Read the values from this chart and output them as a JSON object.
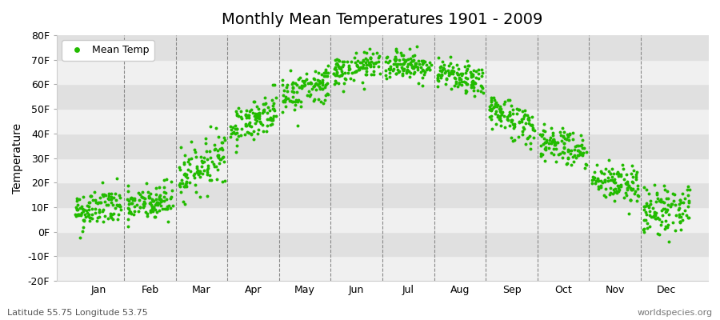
{
  "title": "Monthly Mean Temperatures 1901 - 2009",
  "ylabel": "Temperature",
  "xlabel_bottom_left": "Latitude 55.75 Longitude 53.75",
  "xlabel_bottom_right": "worldspecies.org",
  "legend_label": "Mean Temp",
  "dot_color": "#22bb00",
  "background_color": "#ffffff",
  "band_colors": [
    "#f0f0f0",
    "#e0e0e0"
  ],
  "ylim": [
    -20,
    80
  ],
  "yticks": [
    -20,
    -10,
    0,
    10,
    20,
    30,
    40,
    50,
    60,
    70,
    80
  ],
  "ytick_labels": [
    "-20F",
    "-10F",
    "0F",
    "10F",
    "20F",
    "30F",
    "40F",
    "50F",
    "60F",
    "70F",
    "80F"
  ],
  "months": [
    "Jan",
    "Feb",
    "Mar",
    "Apr",
    "May",
    "Jun",
    "Jul",
    "Aug",
    "Sep",
    "Oct",
    "Nov",
    "Dec"
  ],
  "month_means": [
    8,
    10,
    22,
    42,
    55,
    65,
    68,
    65,
    50,
    38,
    22,
    8
  ],
  "month_trend": [
    3,
    3,
    10,
    8,
    6,
    3,
    0,
    -5,
    -8,
    -6,
    -4,
    2
  ],
  "month_stds": [
    4,
    4,
    5,
    4,
    4,
    3,
    3,
    3,
    4,
    4,
    4,
    5
  ],
  "n_points": 109,
  "seed": 42,
  "dot_size": 8,
  "dot_marker": "o"
}
